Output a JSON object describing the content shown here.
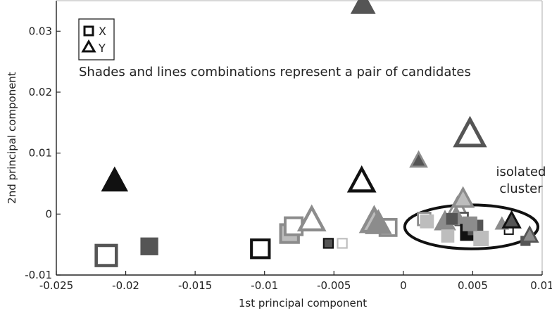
{
  "chart_data": {
    "type": "scatter",
    "title": "",
    "xlabel": "1st principal component",
    "ylabel": "2nd principal component",
    "xlim": [
      -0.025,
      0.01
    ],
    "ylim": [
      -0.01,
      0.035
    ],
    "xticks": [
      -0.025,
      -0.02,
      -0.015,
      -0.01,
      -0.005,
      0,
      0.005,
      0.01
    ],
    "xtick_labels": [
      "-0.025",
      "-0.02",
      "-0.015",
      "-0.01",
      "-0.005",
      "0",
      "0.005",
      "0.01"
    ],
    "yticks": [
      -0.01,
      0,
      0.01,
      0.02,
      0.03
    ],
    "ytick_labels": [
      "-0.01",
      "0",
      "0.01",
      "0.02",
      "0.03"
    ],
    "grid": false,
    "legend": {
      "placement": "top-left",
      "entries": [
        {
          "label": "X",
          "marker": "square"
        },
        {
          "label": "Y",
          "marker": "triangle"
        }
      ]
    },
    "annotations": [
      {
        "text": "Shades and lines combinations represent a pair of candidates"
      },
      {
        "text": "isolated",
        "line": 1
      },
      {
        "text": "cluster",
        "line": 2
      }
    ],
    "highlight_ellipse": {
      "label": "isolated cluster",
      "center": [
        0.0049,
        -0.0021
      ],
      "rx": 0.0048,
      "ry": 0.0036
    },
    "colors": {
      "black": "#111111",
      "dark": "#555555",
      "medium": "#8c8c8c",
      "light": "#bdbdbd"
    },
    "points": [
      {
        "marker": "square",
        "fill": "dark",
        "outline": false,
        "size": 1.3,
        "x": -0.0214,
        "y": -0.0068
      },
      {
        "marker": "square",
        "fill": "white",
        "outline": true,
        "edge": "dark",
        "size": 1.3,
        "x": -0.0214,
        "y": -0.0068
      },
      {
        "marker": "square",
        "fill": "dark",
        "outline": false,
        "size": 1.15,
        "x": -0.0183,
        "y": -0.0053
      },
      {
        "marker": "triangle",
        "fill": "black",
        "outline": false,
        "size": 1.4,
        "x": -0.0208,
        "y": 0.0055
      },
      {
        "marker": "triangle",
        "fill": "dark",
        "outline": false,
        "size": 1.3,
        "x": -0.0029,
        "y": 0.0345
      },
      {
        "marker": "square",
        "fill": "white",
        "outline": true,
        "edge": "black",
        "size": 1.15,
        "x": -0.0103,
        "y": -0.0057
      },
      {
        "marker": "square",
        "fill": "light",
        "outline": true,
        "edge": "medium",
        "size": 1.15,
        "x": -0.0082,
        "y": -0.0032
      },
      {
        "marker": "square",
        "fill": "white",
        "outline": true,
        "edge": "medium",
        "size": 1.1,
        "x": -0.0079,
        "y": -0.002
      },
      {
        "marker": "triangle",
        "fill": "white",
        "outline": true,
        "edge": "medium",
        "size": 1.25,
        "x": -0.0066,
        "y": -0.001
      },
      {
        "marker": "square",
        "fill": "dark",
        "outline": true,
        "edge": "black",
        "size": 0.6,
        "x": -0.0054,
        "y": -0.0048
      },
      {
        "marker": "square",
        "fill": "white",
        "outline": true,
        "edge": "light",
        "size": 0.6,
        "x": -0.0044,
        "y": -0.0048
      },
      {
        "marker": "triangle",
        "fill": "white",
        "outline": true,
        "edge": "black",
        "size": 1.25,
        "x": -0.003,
        "y": 0.0054
      },
      {
        "marker": "triangle",
        "fill": "light",
        "outline": true,
        "edge": "medium",
        "size": 1.3,
        "x": -0.0021,
        "y": -0.0012
      },
      {
        "marker": "square",
        "fill": "white",
        "outline": true,
        "edge": "medium",
        "size": 1.05,
        "x": -0.0011,
        "y": -0.0022
      },
      {
        "marker": "triangle",
        "fill": "medium",
        "outline": false,
        "size": 1.4,
        "x": -0.0018,
        "y": -0.0015
      },
      {
        "marker": "triangle",
        "fill": "white",
        "outline": true,
        "edge": "dark",
        "size": 1.45,
        "x": 0.0048,
        "y": 0.0131
      },
      {
        "marker": "triangle",
        "fill": "dark",
        "outline": true,
        "edge": "medium",
        "size": 0.8,
        "x": 0.0011,
        "y": 0.0088
      },
      {
        "marker": "square",
        "fill": "white",
        "outline": true,
        "edge": "medium",
        "size": 0.8,
        "x": 0.0015,
        "y": -0.0008
      },
      {
        "marker": "square",
        "fill": "light",
        "outline": false,
        "size": 0.9,
        "x": 0.0017,
        "y": -0.0012
      },
      {
        "marker": "triangle",
        "fill": "white",
        "outline": true,
        "edge": "medium",
        "size": 0.9,
        "x": 0.0039,
        "y": 0.0012
      },
      {
        "marker": "triangle",
        "fill": "light",
        "outline": true,
        "edge": "medium",
        "size": 1.0,
        "x": 0.0043,
        "y": 0.0025
      },
      {
        "marker": "square",
        "fill": "white",
        "outline": true,
        "edge": "dark",
        "size": 0.8,
        "x": 0.0042,
        "y": -0.0008
      },
      {
        "marker": "triangle",
        "fill": "medium",
        "outline": false,
        "size": 1.15,
        "x": 0.003,
        "y": -0.0012
      },
      {
        "marker": "triangle",
        "fill": "medium",
        "outline": false,
        "size": 1.1,
        "x": 0.0038,
        "y": -0.0004
      },
      {
        "marker": "square",
        "fill": "light",
        "outline": false,
        "size": 0.85,
        "x": 0.0032,
        "y": -0.0036
      },
      {
        "marker": "square",
        "fill": "dark",
        "outline": false,
        "size": 0.75,
        "x": 0.0035,
        "y": -0.0008
      },
      {
        "marker": "square",
        "fill": "black",
        "outline": false,
        "size": 1.1,
        "x": 0.0047,
        "y": -0.003
      },
      {
        "marker": "square",
        "fill": "dark",
        "outline": false,
        "size": 1.0,
        "x": 0.0052,
        "y": -0.0022
      },
      {
        "marker": "square",
        "fill": "light",
        "outline": false,
        "size": 1.0,
        "x": 0.0056,
        "y": -0.004
      },
      {
        "marker": "square",
        "fill": "medium",
        "outline": false,
        "size": 0.95,
        "x": 0.0048,
        "y": -0.0016
      },
      {
        "marker": "square",
        "fill": "white",
        "outline": true,
        "edge": "black",
        "size": 0.55,
        "x": 0.0076,
        "y": -0.0026
      },
      {
        "marker": "triangle",
        "fill": "medium",
        "outline": false,
        "size": 0.75,
        "x": 0.0071,
        "y": -0.0016
      },
      {
        "marker": "triangle",
        "fill": "dark",
        "outline": true,
        "edge": "black",
        "size": 0.85,
        "x": 0.0078,
        "y": -0.0011
      },
      {
        "marker": "square",
        "fill": "dark",
        "outline": false,
        "size": 0.65,
        "x": 0.0088,
        "y": -0.0044
      },
      {
        "marker": "triangle",
        "fill": "medium",
        "outline": true,
        "edge": "dark",
        "size": 0.8,
        "x": 0.0091,
        "y": -0.0035
      }
    ]
  }
}
